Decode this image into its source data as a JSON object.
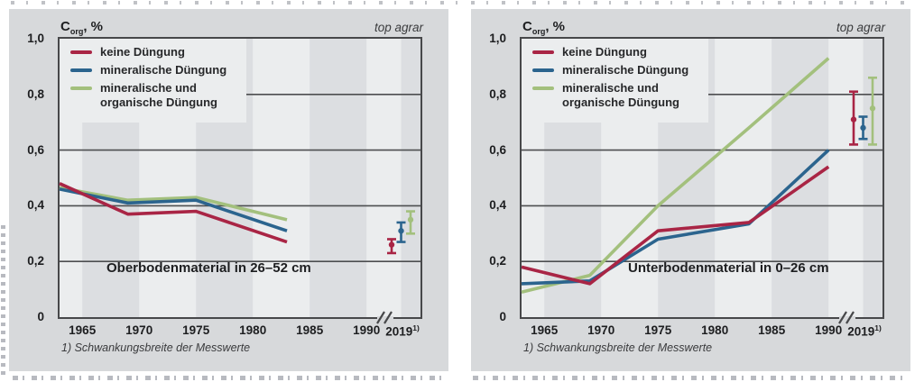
{
  "brand": "top agrar",
  "y_axis_title": {
    "c": "C",
    "sub": "org",
    "rest": ", %"
  },
  "y_ticks": [
    "1,0",
    "0,8",
    "0,6",
    "0,4",
    "0,2",
    "0"
  ],
  "x_ticks": [
    "1965",
    "1970",
    "1975",
    "1980",
    "1985",
    "1990"
  ],
  "x_tick_final": {
    "year": "2019",
    "sup": "1)"
  },
  "footnote": "1) Schwankungsbreite der Messwerte",
  "colors": {
    "keine_duengung": "#a92545",
    "mineralische_duengung": "#2b648e",
    "mineralische_und_organische_duengung": "#a3c07d",
    "grid": "#4d4e50",
    "plot_background": "#ebedee",
    "band": "#dcdee1",
    "panel_background": "#d7d9db"
  },
  "chart_data": [
    {
      "type": "line",
      "title": "Oberbodenmaterial in 26–52 cm",
      "ylabel": "C org, %",
      "ylim": [
        0,
        1.0
      ],
      "grid": true,
      "legend_position": "top-left",
      "x_axis_ticks": [
        1965,
        1970,
        1975,
        1980,
        1985,
        1990,
        2019
      ],
      "axis_break_between": [
        1990,
        2019
      ],
      "x_years": [
        1963,
        1969,
        1975,
        1983
      ],
      "series": [
        {
          "name": "keine Düngung",
          "color": "#a92545",
          "values": [
            0.48,
            0.37,
            0.38,
            0.27
          ]
        },
        {
          "name": "mineralische Düngung",
          "color": "#2b648e",
          "values": [
            0.46,
            0.41,
            0.42,
            0.31
          ]
        },
        {
          "name": "mineralische und organische Düngung",
          "color": "#a3c07d",
          "values": [
            0.465,
            0.42,
            0.43,
            0.35
          ]
        }
      ],
      "errorbars_2019": [
        {
          "name": "keine Düngung",
          "center": 0.26,
          "low": 0.23,
          "high": 0.28
        },
        {
          "name": "mineralische Düngung",
          "center": 0.31,
          "low": 0.27,
          "high": 0.34
        },
        {
          "name": "mineralische und organische Düngung",
          "center": 0.35,
          "low": 0.3,
          "high": 0.38
        }
      ]
    },
    {
      "type": "line",
      "title": "Unterbodenmaterial in 0–26 cm",
      "ylabel": "C org, %",
      "ylim": [
        0,
        1.0
      ],
      "grid": true,
      "legend_position": "top-left",
      "x_axis_ticks": [
        1965,
        1970,
        1975,
        1980,
        1985,
        1990,
        2019
      ],
      "axis_break_between": [
        1990,
        2019
      ],
      "x_years": [
        1963,
        1969,
        1975,
        1983,
        1990
      ],
      "series": [
        {
          "name": "keine Düngung",
          "color": "#a92545",
          "values": [
            0.18,
            0.12,
            0.31,
            0.34,
            0.54
          ]
        },
        {
          "name": "mineralische Düngung",
          "color": "#2b648e",
          "values": [
            0.12,
            0.13,
            0.28,
            0.335,
            0.6
          ]
        },
        {
          "name": "mineralische und organische Düngung",
          "color": "#a3c07d",
          "values": [
            0.09,
            0.15,
            0.4,
            0.68,
            0.93
          ]
        }
      ],
      "errorbars_2019": [
        {
          "name": "keine Düngung",
          "center": 0.71,
          "low": 0.62,
          "high": 0.81
        },
        {
          "name": "mineralische Düngung",
          "center": 0.68,
          "low": 0.64,
          "high": 0.72
        },
        {
          "name": "mineralische und organische Düngung",
          "center": 0.75,
          "low": 0.62,
          "high": 0.86
        }
      ]
    }
  ]
}
